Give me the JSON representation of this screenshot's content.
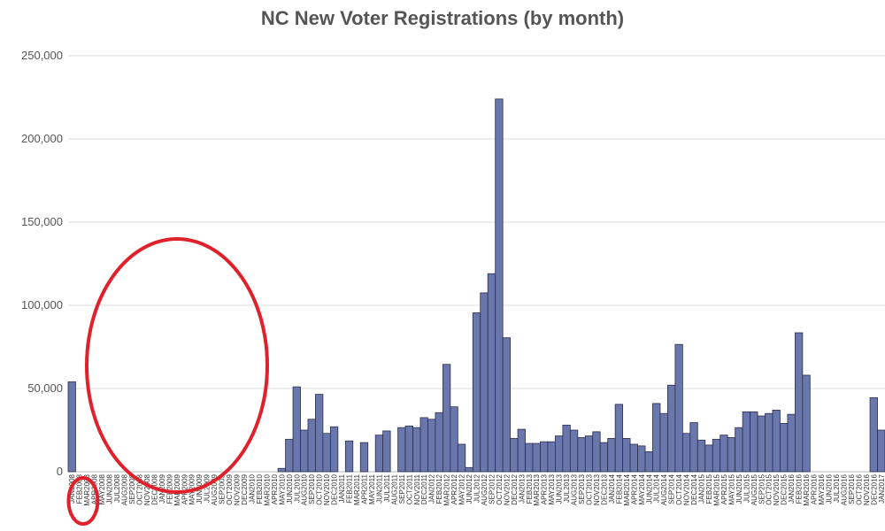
{
  "chart_data": {
    "type": "bar",
    "title": "NC New Voter Registrations (by month)",
    "xlabel": "",
    "ylabel": "",
    "ylim": [
      0,
      250000
    ],
    "yticks": [
      0,
      50000,
      100000,
      150000,
      200000,
      250000
    ],
    "ytick_labels": [
      "0",
      "50,000",
      "100,000",
      "150,000",
      "200,000",
      "250,000"
    ],
    "grid": "horizontal",
    "bar_color": "#6a77ad",
    "bar_edge_color": "#2b2f4a",
    "highlight_color": "#e0202a",
    "categories": [
      "JAN2008",
      "FEB2008",
      "MAR2008",
      "APR2008",
      "MAY2008",
      "JUN2008",
      "JUL2008",
      "AUG2008",
      "SEP2008",
      "OCT2008",
      "NOV2008",
      "DEC2008",
      "JAN2009",
      "FEB2009",
      "MAR2009",
      "APR2009",
      "MAY2009",
      "JUN2009",
      "JUL2009",
      "AUG2009",
      "SEP2009",
      "OCT2009",
      "NOV2009",
      "DEC2009",
      "JAN2010",
      "FEB2010",
      "MAR2010",
      "APR2010",
      "MAY2010",
      "JUN2010",
      "JUL2010",
      "AUG2010",
      "SEP2010",
      "OCT2010",
      "NOV2010",
      "DEC2010",
      "JAN2011",
      "FEB2011",
      "MAR2011",
      "APR2011",
      "MAY2011",
      "JUN2011",
      "JUL2011",
      "AUG2011",
      "SEP2011",
      "OCT2011",
      "NOV2011",
      "DEC2011",
      "JAN2012",
      "FEB2012",
      "MAR2012",
      "APR2012",
      "MAY2012",
      "JUN2012",
      "JUL2012",
      "AUG2012",
      "SEP2012",
      "OCT2012",
      "NOV2012",
      "DEC2012",
      "JAN2013",
      "FEB2013",
      "MAR2013",
      "APR2013",
      "MAY2013",
      "JUN2013",
      "JUL2013",
      "AUG2013",
      "SEP2013",
      "OCT2013",
      "NOV2013",
      "DEC2013",
      "JAN2014",
      "FEB2014",
      "MAR2014",
      "APR2014",
      "MAY2014",
      "JUN2014",
      "JUL2014",
      "AUG2014",
      "SEP2014",
      "OCT2014",
      "NOV2014",
      "DEC2014",
      "JAN2015",
      "FEB2015",
      "MAR2015",
      "APR2015",
      "MAY2015",
      "JUN2015",
      "JUL2015",
      "AUG2015",
      "SEP2015",
      "OCT2015",
      "NOV2015",
      "DEC2015",
      "JAN2016",
      "FEB2016",
      "MAR2016",
      "APR2016",
      "MAY2016",
      "JUN2016",
      "JUL2016",
      "AUG2016",
      "SEP2016",
      "OCT2016",
      "NOV2016",
      "DEC2016",
      "JAN2017"
    ],
    "values": [
      54000,
      0,
      0,
      0,
      0,
      0,
      0,
      0,
      0,
      0,
      0,
      0,
      0,
      0,
      0,
      0,
      0,
      0,
      0,
      0,
      0,
      0,
      0,
      0,
      0,
      0,
      0,
      0,
      2000,
      19500,
      51000,
      25000,
      31500,
      46500,
      23000,
      27000,
      0,
      18500,
      0,
      17500,
      0,
      22000,
      24500,
      0,
      26500,
      27500,
      26500,
      32500,
      31500,
      35500,
      64500,
      39000,
      16500,
      2500,
      95500,
      107500,
      119000,
      224000,
      80500,
      20000,
      25500,
      17000,
      17000,
      18000,
      18000,
      21500,
      28000,
      25000,
      20500,
      21500,
      24000,
      17500,
      20000,
      40500,
      20000,
      16500,
      15500,
      12000,
      41000,
      35000,
      52000,
      76500,
      23000,
      29500,
      19000,
      16000,
      19500,
      22000,
      20500,
      26500,
      36000,
      36000,
      33500,
      35000,
      37000,
      29000,
      34500,
      83500,
      58000,
      0,
      0,
      0,
      0,
      0,
      0,
      0,
      0,
      44500,
      25000
    ],
    "highlights": [
      {
        "type": "ellipse",
        "range": [
          "FEB2008",
          "MAR2008"
        ]
      },
      {
        "type": "ellipse",
        "range": [
          "OCT2008",
          "FEB2010"
        ]
      }
    ]
  }
}
